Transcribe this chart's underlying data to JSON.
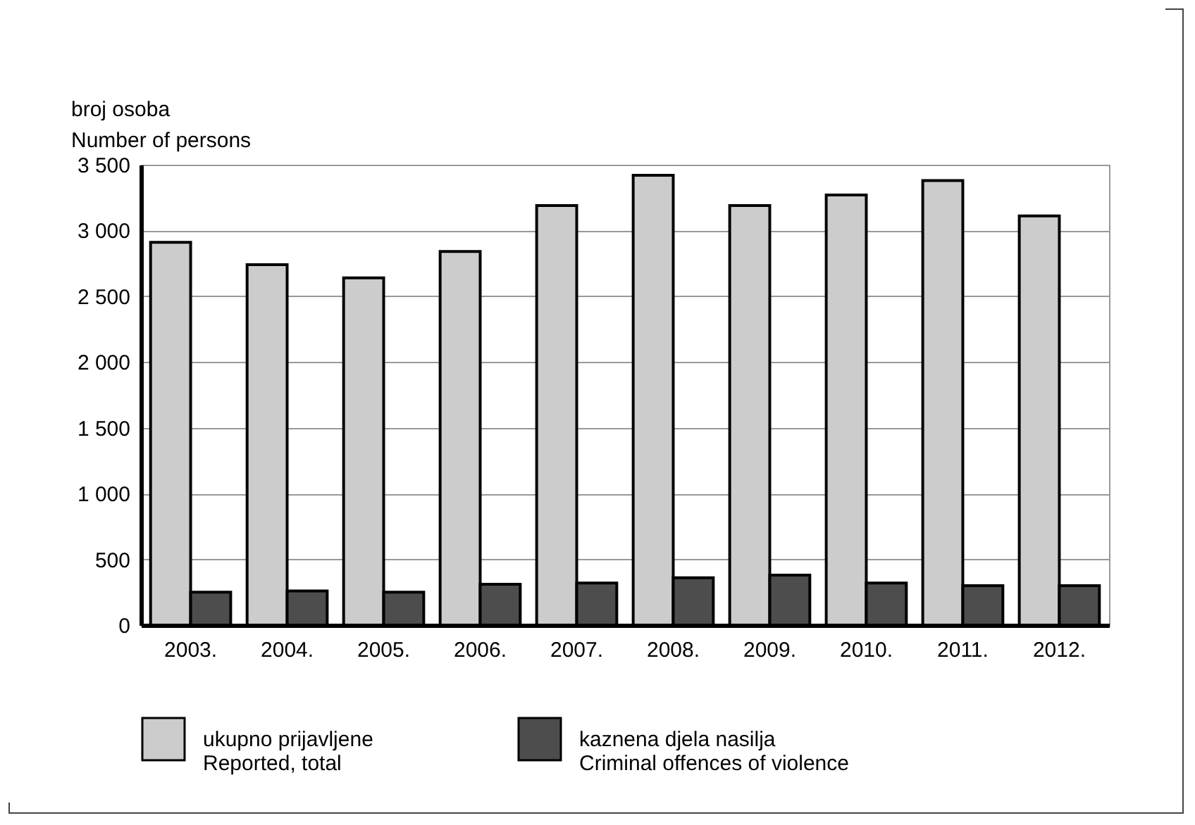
{
  "chart_data": {
    "type": "bar",
    "ylabel": "broj osoba\nNumber of persons",
    "categories": [
      "2003.",
      "2004.",
      "2005.",
      "2006.",
      "2007.",
      "2008.",
      "2009.",
      "2010.",
      "2011.",
      "2012."
    ],
    "series": [
      {
        "name": "ukupno prijavljene\nReported, total",
        "color": "#cccccc",
        "values": [
          2910,
          2740,
          2640,
          2840,
          3190,
          3420,
          3190,
          3270,
          3380,
          3110
        ]
      },
      {
        "name": "kaznena djela nasilja\nCriminal offences of violence",
        "color": "#4d4d4d",
        "values": [
          250,
          260,
          250,
          310,
          320,
          360,
          380,
          320,
          300,
          300
        ]
      }
    ],
    "ylim": [
      0,
      3500
    ],
    "yticks": [
      0,
      500,
      1000,
      1500,
      2000,
      2500,
      3000,
      3500
    ],
    "grid": "y",
    "legend": "bottom"
  }
}
